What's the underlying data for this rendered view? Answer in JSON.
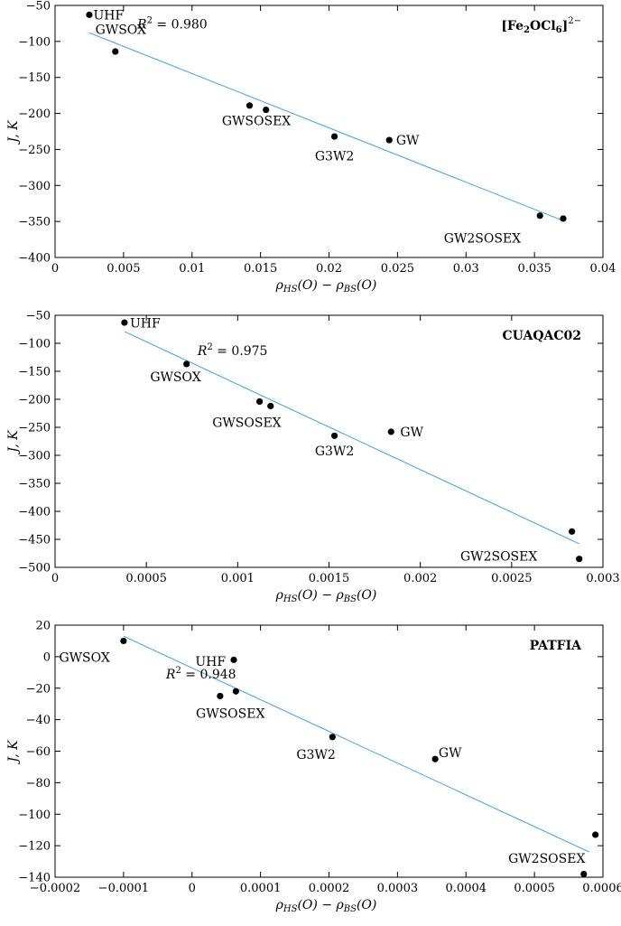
{
  "chart_data": [
    {
      "type": "scatter",
      "title": "[Fe2OCl6]2−",
      "title_parts": {
        "base": "[Fe",
        "sub1": "2",
        "mid": "OCl",
        "sub2": "6",
        "end": "]",
        "sup": "2−"
      },
      "xlabel": "ρHS(O) − ρBS(O)",
      "ylabel": "J, K",
      "xlim": [
        0,
        0.04
      ],
      "ylim": [
        -400,
        -50
      ],
      "x_ticks": [
        0,
        0.005,
        0.01,
        0.015,
        0.02,
        0.025,
        0.03,
        0.035,
        0.04
      ],
      "x_tick_labels": [
        "0",
        "0.005",
        "0.01",
        "0.015",
        "0.02",
        "0.025",
        "0.03",
        "0.035",
        "0.04"
      ],
      "y_ticks": [
        -50,
        -100,
        -150,
        -200,
        -250,
        -300,
        -350,
        -400
      ],
      "y_tick_labels": [
        "−50",
        "−100",
        "−150",
        "−200",
        "−250",
        "−300",
        "−350",
        "−400"
      ],
      "points": [
        {
          "x": 0.0025,
          "y": -63
        },
        {
          "x": 0.0044,
          "y": -114
        },
        {
          "x": 0.0142,
          "y": -189
        },
        {
          "x": 0.0154,
          "y": -195
        },
        {
          "x": 0.0204,
          "y": -232
        },
        {
          "x": 0.0244,
          "y": -237
        },
        {
          "x": 0.0354,
          "y": -342
        },
        {
          "x": 0.0371,
          "y": -346
        }
      ],
      "labels": [
        {
          "text": "UHF",
          "x": 0.0028,
          "y": -63,
          "anchor": "start"
        },
        {
          "text": "GWSOX",
          "x": 0.0048,
          "y": -83,
          "anchor": "middle"
        },
        {
          "text": "GWSOSEX",
          "x": 0.0147,
          "y": -210,
          "anchor": "middle"
        },
        {
          "text": "G3W2",
          "x": 0.0204,
          "y": -259,
          "anchor": "middle"
        },
        {
          "text": "GW",
          "x": 0.0249,
          "y": -237,
          "anchor": "start"
        },
        {
          "text": "GW2SOSEX",
          "x": 0.0312,
          "y": -373,
          "anchor": "middle"
        }
      ],
      "fit": {
        "x": [
          0.0025,
          0.0371
        ],
        "y": [
          -88,
          -349
        ],
        "color": "#3aa3e3"
      },
      "r2_text": {
        "label": "R2",
        "value": " = 0.980",
        "x": 0.006,
        "y": -76
      }
    },
    {
      "type": "scatter",
      "title": "CUAQAC02",
      "xlabel": "ρHS(O) − ρBS(O)",
      "ylabel": "J, K",
      "xlim": [
        0,
        0.003
      ],
      "ylim": [
        -500,
        -50
      ],
      "x_ticks": [
        0,
        0.0005,
        0.001,
        0.0015,
        0.002,
        0.0025,
        0.003
      ],
      "x_tick_labels": [
        "0",
        "0.0005",
        "0.001",
        "0.0015",
        "0.002",
        "0.0025",
        "0.003"
      ],
      "y_ticks": [
        -50,
        -100,
        -150,
        -200,
        -250,
        -300,
        -350,
        -400,
        -450,
        -500
      ],
      "y_tick_labels": [
        "−50",
        "−100",
        "−150",
        "−200",
        "−250",
        "−300",
        "−350",
        "−400",
        "−450",
        "−500"
      ],
      "points": [
        {
          "x": 0.00038,
          "y": -63
        },
        {
          "x": 0.00072,
          "y": -137
        },
        {
          "x": 0.00112,
          "y": -204
        },
        {
          "x": 0.00118,
          "y": -212
        },
        {
          "x": 0.00153,
          "y": -265
        },
        {
          "x": 0.00184,
          "y": -258
        },
        {
          "x": 0.00283,
          "y": -436
        },
        {
          "x": 0.00287,
          "y": -485
        }
      ],
      "labels": [
        {
          "text": "UHF",
          "x": 0.00041,
          "y": -64,
          "anchor": "start"
        },
        {
          "text": "GWSOX",
          "x": 0.00066,
          "y": -160,
          "anchor": "middle"
        },
        {
          "text": "GWSOSEX",
          "x": 0.00105,
          "y": -241,
          "anchor": "middle"
        },
        {
          "text": "G3W2",
          "x": 0.00153,
          "y": -292,
          "anchor": "middle"
        },
        {
          "text": "GW",
          "x": 0.00189,
          "y": -258,
          "anchor": "start"
        },
        {
          "text": "GW2SOSEX",
          "x": 0.00243,
          "y": -480,
          "anchor": "middle"
        }
      ],
      "fit": {
        "x": [
          0.00038,
          0.00287
        ],
        "y": [
          -79,
          -458
        ],
        "color": "#3aa3e3"
      },
      "r2_text": {
        "label": "R2",
        "value": " = 0.975",
        "x": 0.00078,
        "y": -113
      }
    },
    {
      "type": "scatter",
      "title": "PATFIA",
      "xlabel": "ρHS(O) − ρBS(O)",
      "ylabel": "J, K",
      "xlim": [
        -0.0002,
        0.0006
      ],
      "ylim": [
        -140,
        20
      ],
      "x_ticks": [
        -0.0002,
        -0.0001,
        0,
        0.0001,
        0.0002,
        0.0003,
        0.0004,
        0.0005,
        0.0006
      ],
      "x_tick_labels": [
        "−0.0002",
        "−0.0001",
        "0",
        "0.0001",
        "0.0002",
        "0.0003",
        "0.0004",
        "0.0005",
        "0.0006"
      ],
      "y_ticks": [
        20,
        0,
        -20,
        -40,
        -60,
        -80,
        -100,
        -120,
        -140
      ],
      "y_tick_labels": [
        "20",
        "0",
        "−20",
        "−40",
        "−60",
        "−80",
        "−100",
        "−120",
        "−140"
      ],
      "points": [
        {
          "x": -0.0001,
          "y": 10
        },
        {
          "x": 6.1e-05,
          "y": -2
        },
        {
          "x": 4.1e-05,
          "y": -25
        },
        {
          "x": 6.4e-05,
          "y": -22
        },
        {
          "x": 0.000205,
          "y": -51
        },
        {
          "x": 0.000355,
          "y": -65
        },
        {
          "x": 0.000589,
          "y": -113
        },
        {
          "x": 0.000572,
          "y": -138
        }
      ],
      "labels": [
        {
          "text": "GWSOX",
          "x": -0.000157,
          "y": -0.5,
          "anchor": "middle"
        },
        {
          "text": "UHF",
          "x": 2.7e-05,
          "y": -3,
          "anchor": "middle"
        },
        {
          "text": "GWSOSEX",
          "x": 5.6e-05,
          "y": -36,
          "anchor": "middle"
        },
        {
          "text": "G3W2",
          "x": 0.000181,
          "y": -62,
          "anchor": "middle"
        },
        {
          "text": "GW",
          "x": 0.00036,
          "y": -61,
          "anchor": "start"
        },
        {
          "text": "GW2SOSEX",
          "x": 0.000518,
          "y": -128,
          "anchor": "middle"
        }
      ],
      "fit": {
        "x": [
          -0.0001,
          0.00058
        ],
        "y": [
          13,
          -124
        ],
        "color": "#3aa3e3"
      },
      "r2_text": {
        "label": "R2",
        "value": " = 0.948",
        "x": -3.8e-05,
        "y": -11
      }
    }
  ]
}
